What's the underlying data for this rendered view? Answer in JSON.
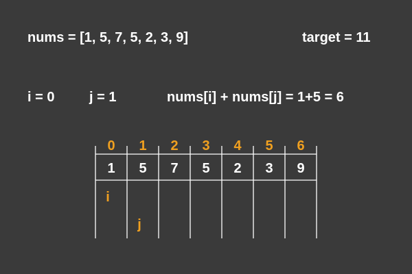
{
  "header": {
    "nums_text": "nums = [1, 5, 7, 5, 2, 3, 9]",
    "target_text": "target = 11"
  },
  "state": {
    "i_text": "i = 0",
    "j_text": "j = 1",
    "sum_text": "nums[i] + nums[j] = 1+5 = 6"
  },
  "array": {
    "indices": [
      "0",
      "1",
      "2",
      "3",
      "4",
      "5",
      "6"
    ],
    "values": [
      "1",
      "5",
      "7",
      "5",
      "2",
      "3",
      "9"
    ]
  },
  "pointers": [
    {
      "label": "i",
      "index": 0
    },
    {
      "label": "j",
      "index": 1
    }
  ],
  "colors": {
    "background": "#3a3a3a",
    "text": "#ffffff",
    "accent": "#f0a020"
  }
}
